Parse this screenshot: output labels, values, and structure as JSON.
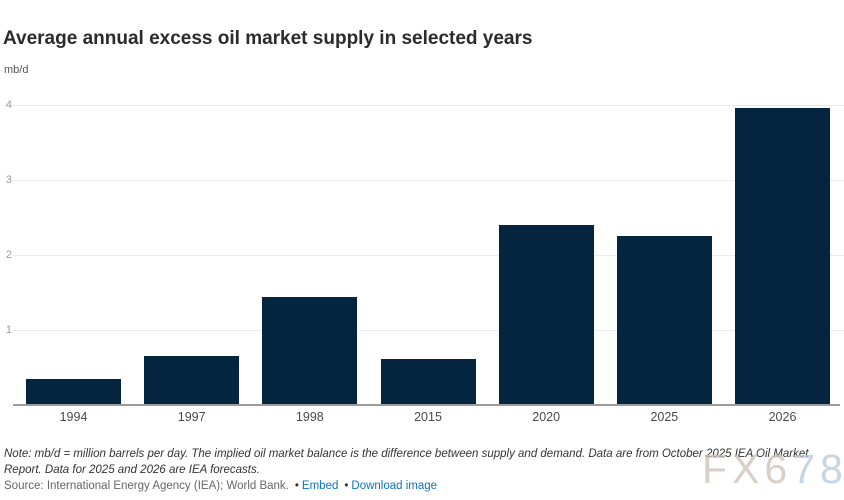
{
  "header": {
    "title": "Average annual excess oil market supply in selected years",
    "unit_label": "mb/d"
  },
  "chart_data": {
    "type": "bar",
    "categories": [
      "1994",
      "1997",
      "1998",
      "2015",
      "2020",
      "2025",
      "2026"
    ],
    "values": [
      0.35,
      0.66,
      1.44,
      0.62,
      2.4,
      2.26,
      3.96
    ],
    "title": "Average annual excess oil market supply in selected years",
    "xlabel": "",
    "ylabel": "mb/d",
    "ylim": [
      0,
      4
    ],
    "yticks": [
      1,
      2,
      3,
      4
    ],
    "grid": true,
    "legend": false,
    "bar_color": "#04243f",
    "gridline_color": "#ececec",
    "axis_line_color": "#9c9c9c"
  },
  "footer": {
    "note": "Note: mb/d = million barrels per day. The implied oil market balance is the difference between supply and demand. Data are from October 2025 IEA Oil Market Report. Data for 2025 and 2026 are IEA forecasts.",
    "source_prefix": "Source: International Energy Agency (IEA); World Bank.",
    "bullet": "•",
    "links": [
      {
        "label": "Embed"
      },
      {
        "label": "Download image"
      }
    ]
  },
  "watermark": {
    "text": "FX678"
  }
}
